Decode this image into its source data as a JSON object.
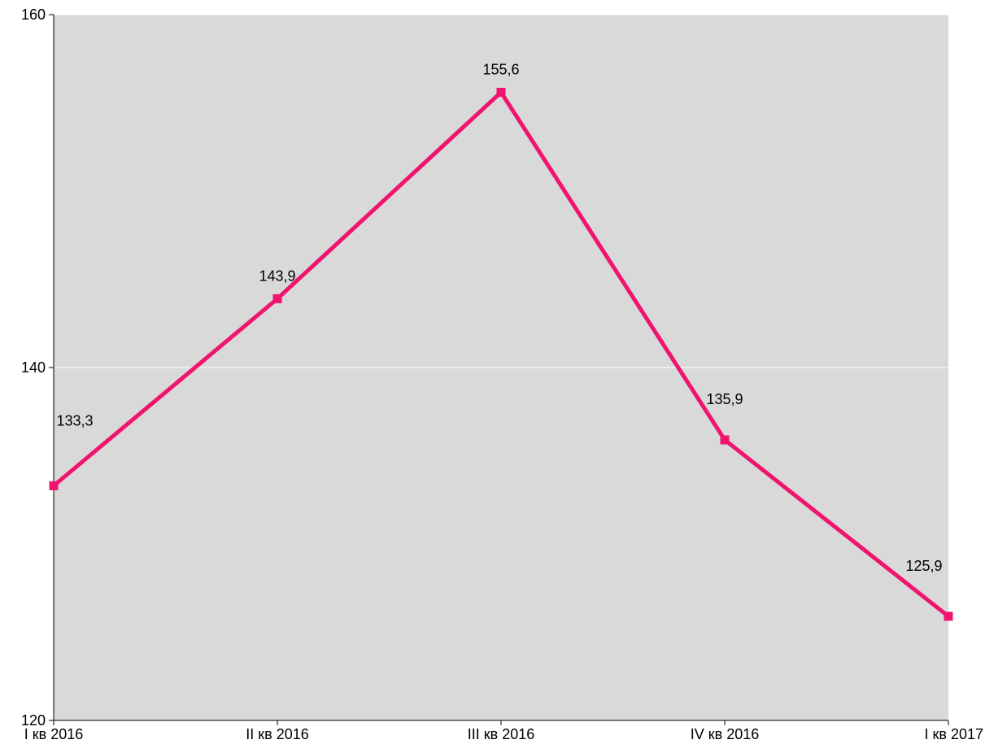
{
  "chart_data": {
    "type": "line",
    "categories": [
      "I кв 2016",
      "II кв 2016",
      "III кв 2016",
      "IV кв 2016",
      "I кв 2017"
    ],
    "series": [
      {
        "values": [
          133.3,
          143.9,
          155.6,
          135.9,
          125.9
        ],
        "labels": [
          "133,3",
          "143,9",
          "155,6",
          "135,9",
          "125,9"
        ],
        "color": "#f0146e"
      }
    ],
    "yticks": [
      120,
      140,
      160
    ],
    "ytick_labels": [
      "120",
      "140",
      "160"
    ],
    "ylim": [
      120,
      160
    ],
    "grid": true,
    "plot_background": "#d9d9d9",
    "gridline_color": "#ffffff",
    "legend": "none",
    "title": "",
    "xlabel": "",
    "ylabel": ""
  }
}
